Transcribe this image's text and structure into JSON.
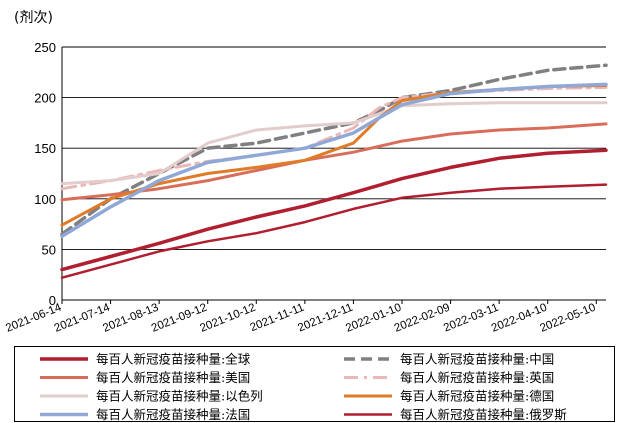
{
  "chart_data": {
    "type": "line",
    "ylabel": "(剂次)",
    "ylim": [
      0,
      250
    ],
    "yticks": [
      0,
      50,
      100,
      150,
      200,
      250
    ],
    "xlim": [
      "2021-06-14",
      "2022-05-16"
    ],
    "xticks": [
      "2021-06-14",
      "2021-07-14",
      "2021-08-13",
      "2021-09-12",
      "2021-10-12",
      "2021-11-11",
      "2021-12-11",
      "2022-01-10",
      "2022-02-09",
      "2022-03-11",
      "2022-04-10",
      "2022-05-10"
    ],
    "grid": "horizontal",
    "legend_position": "bottom",
    "series": [
      {
        "name": "每百人新冠疫苗接种量:全球",
        "color": "#b01e2f",
        "dash": "solid",
        "width": 3.5,
        "x": [
          "2021-06-14",
          "2021-07-14",
          "2021-08-13",
          "2021-09-12",
          "2021-10-12",
          "2021-11-11",
          "2021-12-11",
          "2022-01-10",
          "2022-02-09",
          "2022-03-11",
          "2022-04-10",
          "2022-05-16"
        ],
        "values": [
          30,
          43,
          56,
          70,
          82,
          93,
          106,
          120,
          131,
          140,
          145,
          148
        ]
      },
      {
        "name": "每百人新冠疫苗接种量:中国",
        "color": "#808080",
        "dash": "dashed",
        "width": 3.5,
        "x": [
          "2021-06-14",
          "2021-07-14",
          "2021-08-13",
          "2021-09-12",
          "2021-10-12",
          "2021-11-11",
          "2021-12-11",
          "2021-12-27",
          "2022-01-10",
          "2022-02-09",
          "2022-03-11",
          "2022-04-10",
          "2022-05-16"
        ],
        "values": [
          65,
          100,
          125,
          150,
          155,
          165,
          175,
          187,
          200,
          207,
          218,
          227,
          232
        ]
      },
      {
        "name": "每百人新冠疫苗接种量:美国",
        "color": "#d86e5a",
        "dash": "solid",
        "width": 3,
        "x": [
          "2021-06-14",
          "2021-07-14",
          "2021-08-13",
          "2021-09-12",
          "2021-10-12",
          "2021-11-11",
          "2021-12-11",
          "2022-01-10",
          "2022-02-09",
          "2022-03-11",
          "2022-04-10",
          "2022-05-16"
        ],
        "values": [
          99,
          104,
          110,
          118,
          128,
          138,
          146,
          157,
          164,
          168,
          170,
          174
        ]
      },
      {
        "name": "每百人新冠疫苗接种量:英国",
        "color": "#eab8b6",
        "dash": "dashdot",
        "width": 3,
        "x": [
          "2021-06-14",
          "2021-07-14",
          "2021-08-13",
          "2021-09-12",
          "2021-10-12",
          "2021-11-11",
          "2021-12-11",
          "2021-12-27",
          "2022-01-10",
          "2022-02-09",
          "2022-03-11",
          "2022-04-10",
          "2022-05-16"
        ],
        "values": [
          110,
          118,
          128,
          137,
          143,
          150,
          170,
          190,
          200,
          205,
          207,
          209,
          210
        ]
      },
      {
        "name": "每百人新冠疫苗接种量:以色列",
        "color": "#e3cccc",
        "dash": "solid",
        "width": 3,
        "x": [
          "2021-06-14",
          "2021-07-14",
          "2021-08-13",
          "2021-09-12",
          "2021-10-12",
          "2021-11-11",
          "2021-12-11",
          "2022-01-10",
          "2022-02-09",
          "2022-03-11",
          "2022-04-10",
          "2022-05-16"
        ],
        "values": [
          115,
          118,
          125,
          155,
          168,
          172,
          175,
          192,
          194,
          195,
          195,
          195
        ]
      },
      {
        "name": "每百人新冠疫苗接种量:德国",
        "color": "#e07b27",
        "dash": "solid",
        "width": 3,
        "x": [
          "2021-06-14",
          "2021-07-14",
          "2021-08-13",
          "2021-09-12",
          "2021-10-12",
          "2021-11-11",
          "2021-12-11",
          "2021-12-27",
          "2022-01-10",
          "2022-02-09",
          "2022-03-11",
          "2022-04-10",
          "2022-05-16"
        ],
        "values": [
          74,
          100,
          115,
          125,
          131,
          138,
          155,
          180,
          197,
          205,
          208,
          211,
          212
        ]
      },
      {
        "name": "每百人新冠疫苗接种量:法国",
        "color": "#8fa8d6",
        "dash": "solid",
        "width": 3.5,
        "x": [
          "2021-06-14",
          "2021-07-14",
          "2021-08-13",
          "2021-09-12",
          "2021-10-12",
          "2021-11-11",
          "2021-12-11",
          "2021-12-27",
          "2022-01-10",
          "2022-02-09",
          "2022-03-11",
          "2022-04-10",
          "2022-05-16"
        ],
        "values": [
          63,
          92,
          118,
          136,
          143,
          150,
          165,
          180,
          193,
          204,
          208,
          211,
          213
        ]
      },
      {
        "name": "每百人新冠疫苗接种量:俄罗斯",
        "color": "#b01e2f",
        "dash": "solid",
        "width": 2.5,
        "x": [
          "2021-06-14",
          "2021-07-14",
          "2021-08-13",
          "2021-09-12",
          "2021-10-12",
          "2021-11-11",
          "2021-12-11",
          "2022-01-10",
          "2022-02-09",
          "2022-03-11",
          "2022-04-10",
          "2022-05-16"
        ],
        "values": [
          22,
          35,
          48,
          58,
          66,
          77,
          90,
          101,
          106,
          110,
          112,
          114
        ]
      }
    ]
  }
}
